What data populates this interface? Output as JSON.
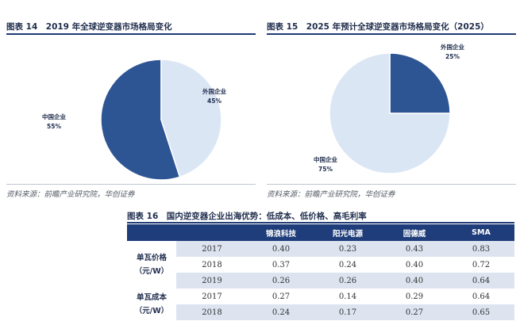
{
  "figure14": {
    "title": "图表 14　2019 年全球逆变器市场格局变化",
    "source": "资料来源：前瞻产业研究院，华创证券"
  },
  "figure15": {
    "title": "图表 15　2025 年预计全球逆变器市场格局变化（2025）",
    "source": "资料来源：前瞻产业研究院，华创证券"
  },
  "figure16": {
    "title": "图表 16　国内逆变器企业出海优势：低成本、低价格、高毛利率",
    "headers": [
      "",
      "",
      "锦浪科技",
      "阳光电源",
      "固德威",
      "SMA"
    ],
    "groups": [
      {
        "metric": "单瓦价格（元/W）",
        "rows": [
          {
            "year": "2017",
            "values": [
              "0.40",
              "0.23",
              "0.43",
              "0.83"
            ]
          },
          {
            "year": "2018",
            "values": [
              "0.37",
              "0.24",
              "0.40",
              "0.72"
            ]
          },
          {
            "year": "2019",
            "values": [
              "0.26",
              "0.26",
              "0.40",
              "0.64"
            ]
          }
        ]
      },
      {
        "metric": "单瓦成本（元/W）",
        "rows": [
          {
            "year": "2017",
            "values": [
              "0.27",
              "0.14",
              "0.29",
              "0.64"
            ]
          },
          {
            "year": "2018",
            "values": [
              "0.24",
              "0.17",
              "0.27",
              "0.65"
            ]
          }
        ]
      }
    ]
  },
  "colors": {
    "dark": "#2e5593",
    "light": "#dbe6f5",
    "header": "#1f3d7a",
    "shade": "#dde4f0"
  },
  "chart_data": [
    {
      "type": "pie",
      "title": "2019 年全球逆变器市场格局变化",
      "slices": [
        {
          "label": "中国企业",
          "value": 55,
          "value_label": "55%",
          "color": "#2e5593"
        },
        {
          "label": "外国企业",
          "value": 45,
          "value_label": "45%",
          "color": "#dbe6f5"
        }
      ]
    },
    {
      "type": "pie",
      "title": "2025 年预计全球逆变器市场格局变化（2025）",
      "slices": [
        {
          "label": "外国企业",
          "value": 25,
          "value_label": "25%",
          "color": "#2e5593"
        },
        {
          "label": "中国企业",
          "value": 75,
          "value_label": "75%",
          "color": "#dbe6f5"
        }
      ]
    }
  ]
}
